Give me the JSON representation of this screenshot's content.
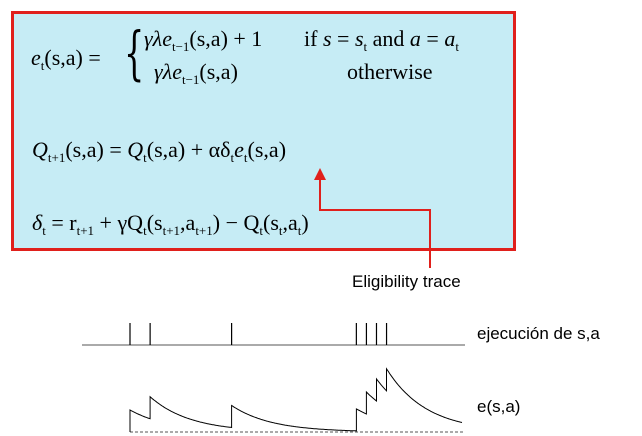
{
  "equations": {
    "eligibility_update": {
      "lhs": "e",
      "lhs_sub": "t",
      "lhs_args": "(s,a) =",
      "case1_expr_a": "γλe",
      "case1_sub": "t−1",
      "case1_expr_b": "(s,a) + 1",
      "case1_condition_a": "if ",
      "case1_cond_s": "s",
      "case1_cond_eq1": " = ",
      "case1_cond_st": "s",
      "case1_cond_st_sub": "t",
      "case1_cond_and": " and ",
      "case1_cond_a": "a",
      "case1_cond_eq2": " = ",
      "case1_cond_at": "a",
      "case1_cond_at_sub": "t",
      "case2_expr_a": "γλe",
      "case2_sub": "t−1",
      "case2_expr_b": "(s,a)",
      "case2_condition": "otherwise"
    },
    "q_update": {
      "lhs": "Q",
      "lhs_sub": "t+1",
      "part1": "(s,a) = ",
      "part2": "Q",
      "part2_sub": "t",
      "part3": "(s,a) + αδ",
      "part3_sub": "t",
      "part4": "e",
      "part4_sub": "t",
      "part5": "(s,a)"
    },
    "td_error": {
      "lhs": "δ",
      "lhs_sub": "t",
      "eq": " = r",
      "eq_sub": "t+1",
      "part1": " + γQ",
      "part1_sub": "t",
      "part2": "(s",
      "part2_sub": "t+1",
      "part3": ",a",
      "part3_sub": "t+1",
      "part4": ") − Q",
      "part4_sub": "t",
      "part5": "(s",
      "part5_sub": "t",
      "part6": ",a",
      "part6_sub": "t",
      "part7": ")"
    }
  },
  "annotation": {
    "label": "Eligibility trace"
  },
  "timeline": {
    "visit_label": "ejecución de s,a",
    "trace_label": "e(s,a)",
    "visit_times": [
      0,
      20,
      101,
      225,
      235,
      245,
      255
    ],
    "decay_per_step": 0.975,
    "increment": 1,
    "t_max": 330
  },
  "colors": {
    "box_fill": "#c6ecf5",
    "box_border": "#e0201c",
    "arrow": "#e0201c",
    "ink": "#000000",
    "baseline": "#555555"
  }
}
